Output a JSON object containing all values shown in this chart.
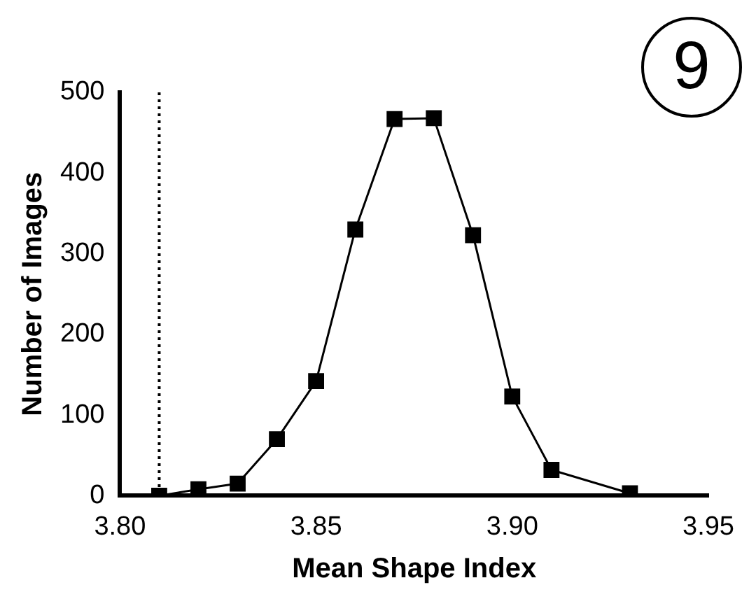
{
  "chart_data": {
    "type": "line",
    "xlabel": "Mean Shape Index",
    "ylabel": "Number of Images",
    "x": [
      3.81,
      3.82,
      3.83,
      3.84,
      3.85,
      3.86,
      3.87,
      3.88,
      3.89,
      3.9,
      3.91,
      3.93
    ],
    "series": [
      {
        "color": "#000000",
        "values": [
          0,
          8,
          15,
          70,
          142,
          330,
          467,
          468,
          323,
          123,
          32,
          3
        ]
      }
    ],
    "xlim": [
      3.8,
      3.95
    ],
    "xticks": [
      {
        "value": 3.8,
        "label": "3.80"
      },
      {
        "value": 3.85,
        "label": "3.85"
      },
      {
        "value": 3.9,
        "label": "3.90"
      },
      {
        "value": 3.95,
        "label": "3.95"
      }
    ],
    "ylim": [
      0,
      500
    ],
    "yticks": [
      0,
      100,
      200,
      300,
      400,
      500
    ],
    "ref_lines": [
      {
        "axis": "x",
        "value": 3.81,
        "line_style": "dotted",
        "color": "#000000"
      }
    ],
    "annotations": [
      "9"
    ],
    "grid": false,
    "legend": false,
    "marker": "square",
    "line_style": "solid"
  }
}
